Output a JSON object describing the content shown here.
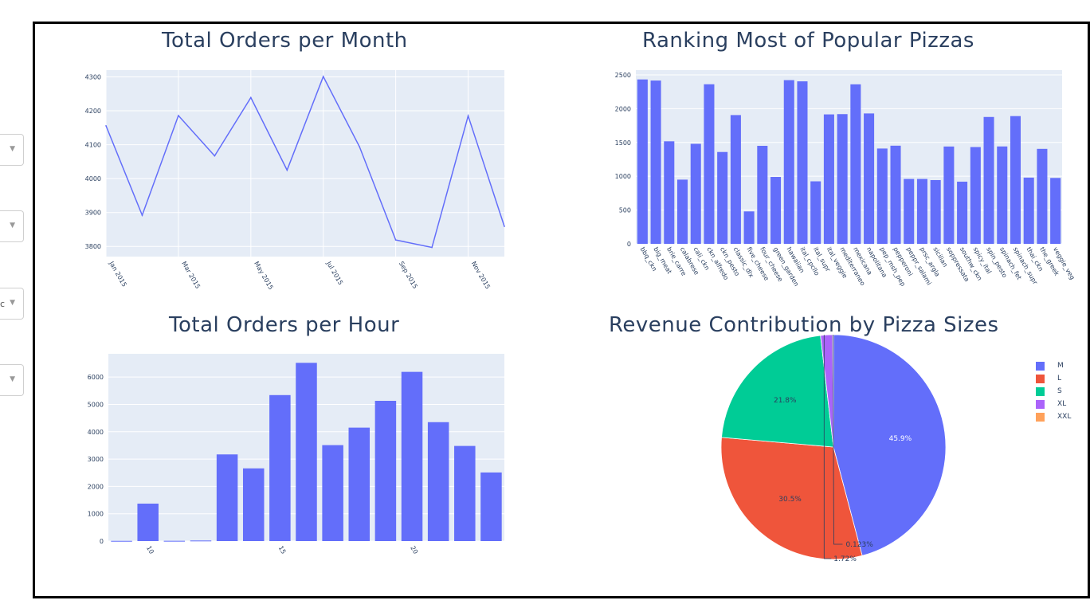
{
  "dropdowns": [
    {
      "value": "",
      "icon": "chevron-down-icon"
    },
    {
      "value": "",
      "icon": "chevron-down-icon"
    },
    {
      "value": "c",
      "icon": "chevron-down-icon"
    },
    {
      "value": "",
      "icon": "chevron-down-icon"
    }
  ],
  "colors": {
    "bar": "#636efa",
    "plot_bg": "#e5ecf6",
    "grid": "#ffffff",
    "text": "#2a3f5f"
  },
  "chart_data": [
    {
      "type": "line",
      "title": "Total Orders per Month",
      "x": [
        "Jan 2015",
        "Feb 2015",
        "Mar 2015",
        "Apr 2015",
        "May 2015",
        "Jun 2015",
        "Jul 2015",
        "Aug 2015",
        "Sep 2015",
        "Oct 2015",
        "Nov 2015",
        "Dec 2015"
      ],
      "x_tick_labels": [
        "Jan 2015",
        "Mar 2015",
        "May 2015",
        "Jul 2015",
        "Sep 2015",
        "Nov 2015"
      ],
      "values": [
        4156,
        3892,
        4186,
        4067,
        4239,
        4025,
        4301,
        4094,
        3819,
        3797,
        4185,
        3859
      ],
      "yticks": [
        3800,
        3900,
        4000,
        4100,
        4200,
        4300
      ],
      "ylim": [
        3770,
        4320
      ],
      "grid": true
    },
    {
      "type": "bar",
      "title": "Ranking Most of Popular Pizzas",
      "categories": [
        "bbq_ckn",
        "big_meat",
        "brie_carre",
        "calabrese",
        "cali_ckn",
        "ckn_alfredo",
        "ckn_pesto",
        "classic_dlx",
        "five_cheese",
        "four_cheese",
        "green_garden",
        "hawaiian",
        "ital_cpcllo",
        "ital_supr",
        "ital_veggie",
        "mediterraneo",
        "mexicana",
        "napolitana",
        "pep_msh_pep",
        "pepperoni",
        "peppr_salami",
        "prsc_argla",
        "sicilian",
        "soppressata",
        "southw_ckn",
        "spicy_ital",
        "spin_pesto",
        "spinach_fet",
        "spinach_supr",
        "thai_ckn",
        "the_greek",
        "veggie_veg"
      ],
      "values": [
        2432,
        2416,
        1517,
        950,
        1480,
        2361,
        1359,
        1905,
        480,
        1450,
        990,
        2422,
        2404,
        925,
        1915,
        1919,
        2360,
        1929,
        1410,
        1452,
        960,
        960,
        943,
        1440,
        920,
        1432,
        1877,
        1441,
        1890,
        980,
        1405,
        975
      ],
      "yticks": [
        0,
        500,
        1000,
        1500,
        2000,
        2500
      ],
      "ylim": [
        0,
        2570
      ],
      "grid": true
    },
    {
      "type": "bar",
      "title": "Total Orders per Hour",
      "x": [
        9,
        10,
        11,
        12,
        13,
        14,
        15,
        16,
        17,
        18,
        19,
        20,
        21,
        22,
        23
      ],
      "values": [
        8,
        1370,
        10,
        20,
        3170,
        2660,
        5340,
        6520,
        3510,
        4150,
        5130,
        6190,
        4350,
        3480,
        2510
      ],
      "x_tick_labels": [
        "10",
        "15",
        "20"
      ],
      "yticks": [
        0,
        1000,
        2000,
        3000,
        4000,
        5000,
        6000
      ],
      "ylim": [
        0,
        6850
      ],
      "grid": true
    },
    {
      "type": "pie",
      "title": "Revenue Contribution by Pizza Sizes",
      "labels": [
        "M",
        "L",
        "S",
        "XL",
        "XXL"
      ],
      "values": [
        45.9,
        30.5,
        21.8,
        1.72,
        0.123
      ],
      "text_labels": [
        "45.9%",
        "30.5%",
        "21.8%",
        "1.72%",
        "0.123%"
      ],
      "colors": [
        "#636efa",
        "#ef553b",
        "#00cc96",
        "#ab63fa",
        "#ffa15a"
      ],
      "legend": "right"
    }
  ]
}
